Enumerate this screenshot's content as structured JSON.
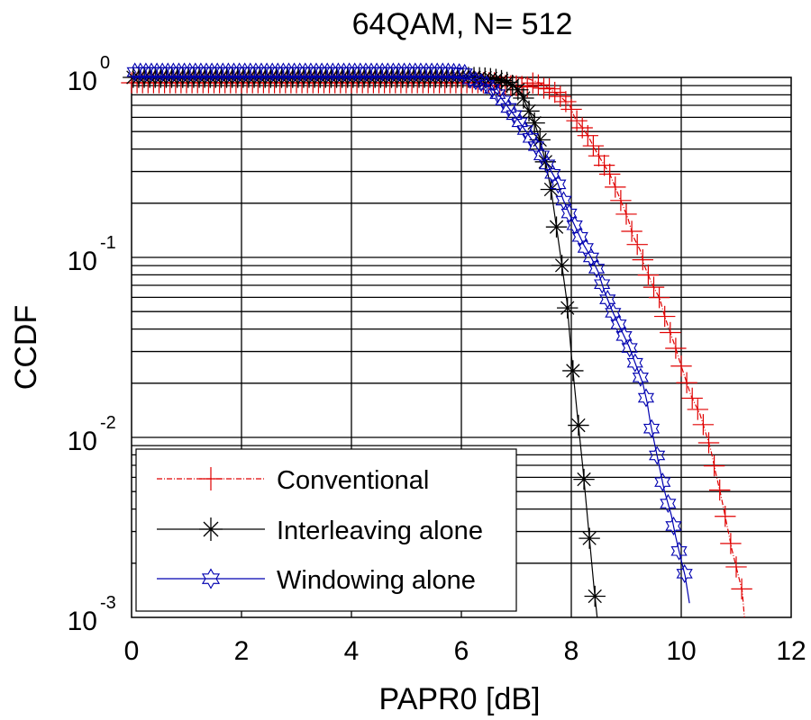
{
  "chart_data": {
    "type": "line",
    "title": "64QAM, N= 512",
    "xlabel": "PAPR0 [dB]",
    "ylabel": "CCDF",
    "xlim": [
      0,
      12
    ],
    "ylim": [
      0.001,
      1
    ],
    "yscale": "log",
    "grid": true,
    "xticks": [
      0,
      2,
      4,
      6,
      8,
      10,
      12
    ],
    "xtick_labels": [
      "0",
      "2",
      "4",
      "6",
      "8",
      "10",
      "12"
    ],
    "yticks": [
      {
        "base": "10",
        "exp": "0",
        "value": 1
      },
      {
        "base": "10",
        "exp": "-1",
        "value": 0.1
      },
      {
        "base": "10",
        "exp": "-2",
        "value": 0.01
      },
      {
        "base": "10",
        "exp": "-3",
        "value": 0.001
      }
    ],
    "legend_position": "bottom-left",
    "series": [
      {
        "name": "Conventional",
        "color": "#e00000",
        "marker": "plus",
        "linestyle": "dashdot",
        "x": [
          0.0,
          0.2,
          0.4,
          0.6,
          0.8,
          1.0,
          1.2,
          1.4,
          1.6,
          1.8,
          2.0,
          2.2,
          2.4,
          2.6,
          2.8,
          3.0,
          3.2,
          3.4,
          3.6,
          3.8,
          4.0,
          4.2,
          4.4,
          4.6,
          4.8,
          5.0,
          5.2,
          5.4,
          5.6,
          5.8,
          6.0,
          6.2,
          6.4,
          6.6,
          6.8,
          7.0,
          7.23,
          7.4,
          7.56,
          7.77,
          7.97,
          8.07,
          8.21,
          8.31,
          8.43,
          8.56,
          8.7,
          8.79,
          8.92,
          9.03,
          9.13,
          9.25,
          9.33,
          9.46,
          9.61,
          9.69,
          9.79,
          9.89,
          9.98,
          10.08,
          10.18,
          10.34,
          10.43,
          10.54,
          10.62,
          10.72,
          10.82,
          10.92,
          11.02,
          11.11,
          11.15
        ],
        "y": [
          1,
          1,
          1,
          1,
          1,
          1,
          1,
          1,
          1,
          1,
          1,
          1,
          1,
          1,
          1,
          1,
          1,
          1,
          1,
          1,
          1,
          1,
          1,
          1,
          1,
          1,
          1,
          1,
          1,
          1,
          1,
          1,
          1,
          1,
          1,
          0.995,
          0.98,
          0.94,
          0.88,
          0.8,
          0.7,
          0.59,
          0.52,
          0.47,
          0.4,
          0.34,
          0.29,
          0.25,
          0.2,
          0.165,
          0.13,
          0.11,
          0.09,
          0.072,
          0.059,
          0.048,
          0.039,
          0.032,
          0.026,
          0.021,
          0.017,
          0.0135,
          0.011,
          0.0085,
          0.0065,
          0.0048,
          0.0034,
          0.0024,
          0.0018,
          0.0014,
          0.001
        ]
      },
      {
        "name": "Interleaving alone",
        "color": "#000000",
        "marker": "star",
        "linestyle": "solid",
        "x": [
          0.0,
          0.2,
          0.4,
          0.6,
          0.8,
          1.0,
          1.2,
          1.4,
          1.6,
          1.8,
          2.0,
          2.2,
          2.4,
          2.6,
          2.8,
          3.0,
          3.2,
          3.4,
          3.6,
          3.8,
          4.0,
          4.2,
          4.4,
          4.6,
          4.8,
          5.0,
          5.2,
          5.4,
          5.6,
          5.8,
          6.0,
          6.2,
          6.4,
          6.6,
          6.8,
          7.0,
          7.12,
          7.23,
          7.34,
          7.44,
          7.54,
          7.64,
          7.72,
          7.82,
          7.92,
          8.0,
          8.1,
          8.21,
          8.31,
          8.41,
          8.47
        ],
        "y": [
          1,
          1,
          1,
          1,
          1,
          1,
          1,
          1,
          1,
          1,
          1,
          1,
          1,
          1,
          1,
          1,
          1,
          1,
          1,
          1,
          1,
          1,
          1,
          1,
          1,
          1,
          1,
          1,
          1,
          1,
          1,
          1,
          0.995,
          0.98,
          0.95,
          0.88,
          0.78,
          0.65,
          0.55,
          0.44,
          0.33,
          0.23,
          0.155,
          0.095,
          0.057,
          0.029,
          0.0143,
          0.0068,
          0.0032,
          0.0015,
          0.001
        ]
      },
      {
        "name": "Windowing alone",
        "color": "#0000b0",
        "marker": "hexagram",
        "linestyle": "solid",
        "x": [
          0.0,
          0.2,
          0.4,
          0.6,
          0.8,
          1.0,
          1.2,
          1.4,
          1.6,
          1.8,
          2.0,
          2.2,
          2.4,
          2.6,
          2.8,
          3.0,
          3.2,
          3.4,
          3.6,
          3.8,
          4.0,
          4.2,
          4.4,
          4.6,
          4.8,
          5.0,
          5.2,
          5.4,
          5.6,
          5.8,
          6.0,
          6.2,
          6.35,
          6.5,
          6.71,
          6.87,
          7.03,
          7.2,
          7.35,
          7.48,
          7.61,
          7.75,
          7.85,
          7.98,
          8.11,
          8.23,
          8.36,
          8.49,
          8.6,
          8.75,
          8.9,
          9.05,
          9.18,
          9.3,
          9.38,
          9.44,
          9.52,
          9.61,
          9.69,
          9.82,
          9.9,
          9.98,
          10.07,
          10.15
        ],
        "y": [
          1,
          1,
          1,
          1,
          1,
          1,
          1,
          1,
          1,
          1,
          1,
          1,
          1,
          1,
          1,
          1,
          1,
          1,
          1,
          1,
          1,
          1,
          1,
          1,
          1,
          1,
          1,
          1,
          1,
          1,
          0.99,
          0.97,
          0.94,
          0.9,
          0.78,
          0.67,
          0.58,
          0.49,
          0.42,
          0.36,
          0.31,
          0.26,
          0.21,
          0.17,
          0.14,
          0.117,
          0.1,
          0.083,
          0.065,
          0.05,
          0.04,
          0.032,
          0.025,
          0.02,
          0.0156,
          0.012,
          0.0091,
          0.0067,
          0.0051,
          0.0037,
          0.0028,
          0.0022,
          0.0017,
          0.0012
        ]
      }
    ]
  }
}
